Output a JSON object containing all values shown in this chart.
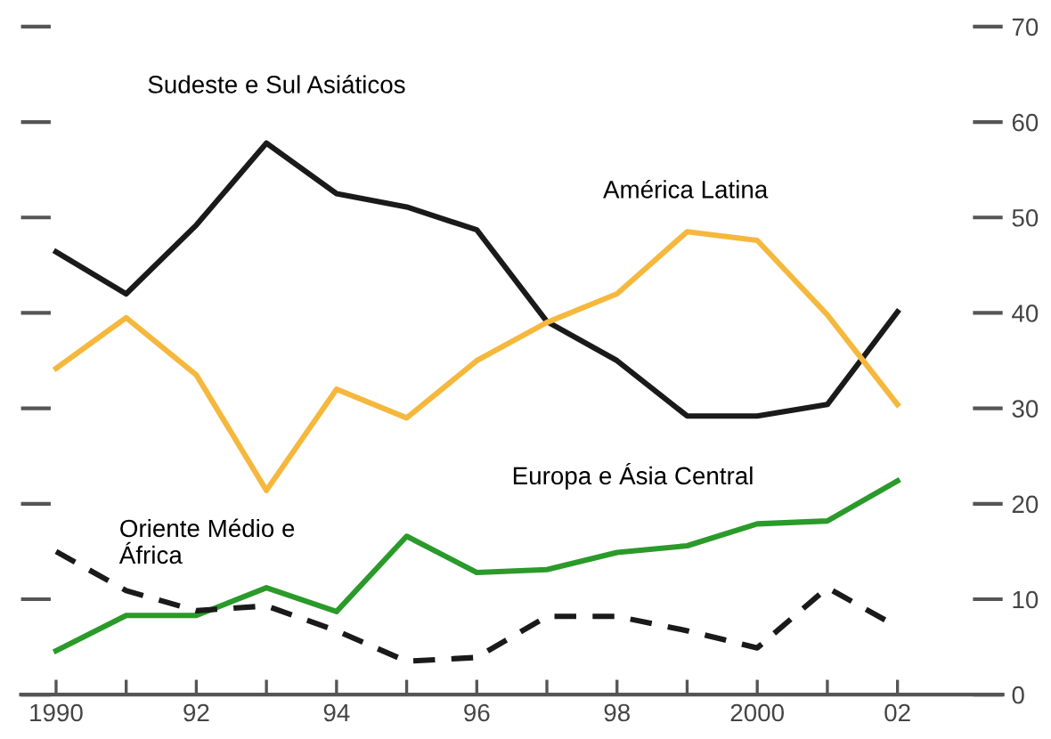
{
  "chart_data": {
    "type": "line",
    "x": [
      1990,
      1991,
      1992,
      1993,
      1994,
      1995,
      1996,
      1997,
      1998,
      1999,
      2000,
      2001,
      2002
    ],
    "series": [
      {
        "name": "Sudeste e Sul Asiáticos",
        "color": "#1a1a1a",
        "line_style": "solid",
        "values": [
          46.4,
          42,
          49.2,
          57.8,
          52.5,
          51.1,
          48.7,
          39.1,
          35,
          29.2,
          29.2,
          30.4,
          40.1
        ]
      },
      {
        "name": "América Latina",
        "color": "#f5b83d",
        "line_style": "solid",
        "values": [
          34.2,
          39.5,
          33.5,
          21.4,
          32,
          29,
          35,
          39,
          42,
          48.5,
          47.6,
          39.8,
          30.4
        ]
      },
      {
        "name": "Europa e Ásia Central",
        "color": "#2a9a2a",
        "line_style": "solid",
        "values": [
          4.6,
          8.3,
          8.3,
          11.2,
          8.7,
          16.6,
          12.8,
          13.1,
          14.9,
          15.6,
          17.9,
          18.2,
          22.4
        ]
      },
      {
        "name": "Oriente Médio e\nÁfrica",
        "color": "#1a1a1a",
        "line_style": "dashed",
        "values": [
          15,
          10.9,
          8.8,
          9.3,
          6.7,
          3.5,
          3.9,
          8.2,
          8.2,
          6.7,
          4.9,
          11.2,
          7.1
        ]
      }
    ],
    "xlim": [
      1989.5,
      2003.5
    ],
    "xticks": [
      1990,
      {
        "value": 1991,
        "label": null
      },
      {
        "value": 1992,
        "label": "92"
      },
      {
        "value": 1993,
        "label": null
      },
      {
        "value": 1994,
        "label": "94"
      },
      {
        "value": 1995,
        "label": null
      },
      {
        "value": 1996,
        "label": "96"
      },
      {
        "value": 1997,
        "label": null
      },
      {
        "value": 1998,
        "label": "98"
      },
      {
        "value": 1999,
        "label": null
      },
      2000,
      {
        "value": 2001,
        "label": null
      },
      {
        "value": 2002,
        "label": "02"
      }
    ],
    "ylim": [
      0,
      70
    ],
    "yticks": [
      0,
      10,
      20,
      30,
      40,
      50,
      60,
      70
    ],
    "grid": false,
    "legend": false,
    "marker": "none"
  }
}
